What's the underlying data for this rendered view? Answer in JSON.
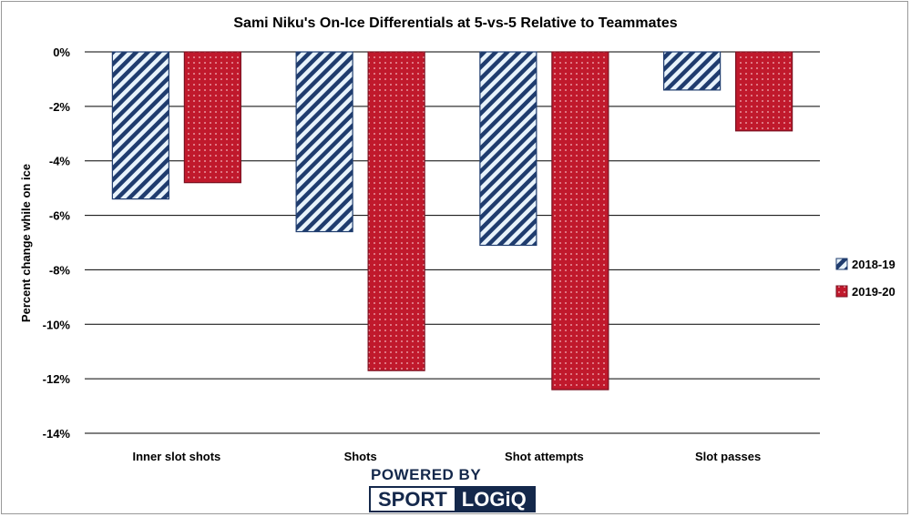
{
  "chart_data": {
    "type": "bar",
    "title": "Sami Niku's On-Ice Differentials at 5-vs-5 Relative to Teammates",
    "xlabel": "",
    "ylabel": "Percent change while on ice",
    "ylim": [
      -14,
      0
    ],
    "yticks": [
      0,
      -2,
      -4,
      -6,
      -8,
      -10,
      -12,
      -14
    ],
    "ytick_labels": [
      "0%",
      "-2%",
      "-4%",
      "-6%",
      "-8%",
      "-10%",
      "-12%",
      "-14%"
    ],
    "grid": true,
    "legend_position": "right",
    "categories": [
      "Inner slot shots",
      "Shots",
      "Shot attempts",
      "Slot passes"
    ],
    "series": [
      {
        "name": "2018-19",
        "values": [
          -5.4,
          -6.6,
          -7.1,
          -1.4
        ],
        "color": "#1f3c6e",
        "pattern": "diagonal-stripes"
      },
      {
        "name": "2019-20",
        "values": [
          -4.8,
          -11.7,
          -12.4,
          -2.9
        ],
        "color": "#c0192c",
        "pattern": "dots"
      }
    ]
  },
  "branding": {
    "powered_by": "POWERED BY",
    "sport": "SPORT",
    "logiq": "LOGiQ"
  }
}
